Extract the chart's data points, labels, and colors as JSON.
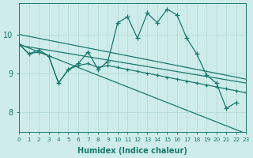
{
  "bg_color": "#ceecea",
  "grid_color": "#b0d8d4",
  "line_color": "#1a7a6e",
  "xlabel": "Humidex (Indice chaleur)",
  "xlim": [
    0,
    23
  ],
  "ylim": [
    7.5,
    10.8
  ],
  "yticks": [
    8,
    9,
    10
  ],
  "xticks": [
    0,
    1,
    2,
    3,
    4,
    5,
    6,
    7,
    8,
    9,
    10,
    11,
    12,
    13,
    14,
    15,
    16,
    17,
    18,
    19,
    20,
    21,
    22,
    23
  ],
  "series": [
    {
      "x": [
        0,
        1,
        2,
        3,
        4,
        5,
        6,
        7,
        8,
        9,
        10,
        11,
        12,
        13,
        14,
        15,
        16,
        17,
        18,
        19,
        20,
        21,
        22
      ],
      "y": [
        9.75,
        9.5,
        9.55,
        9.45,
        8.75,
        9.1,
        9.25,
        9.55,
        9.1,
        9.3,
        10.3,
        10.45,
        9.9,
        10.55,
        10.3,
        10.65,
        10.5,
        9.9,
        9.5,
        8.95,
        8.75,
        8.1,
        8.25
      ],
      "marker": "+",
      "ms": 4.5,
      "lw": 0.9,
      "mew": 0.9
    },
    {
      "x": [
        0,
        23
      ],
      "y": [
        10.0,
        8.85
      ],
      "marker": null,
      "ms": 0,
      "lw": 0.9,
      "mew": 0.5
    },
    {
      "x": [
        0,
        23
      ],
      "y": [
        9.72,
        8.75
      ],
      "marker": null,
      "ms": 0,
      "lw": 0.9,
      "mew": 0.5
    },
    {
      "x": [
        0,
        1,
        2,
        3,
        4,
        5,
        6,
        7,
        8,
        9,
        10,
        11,
        12,
        13,
        14,
        15,
        16,
        17,
        18,
        19,
        20,
        21,
        22,
        23
      ],
      "y": [
        9.75,
        9.5,
        9.6,
        9.45,
        8.75,
        9.1,
        9.2,
        9.25,
        9.15,
        9.2,
        9.15,
        9.1,
        9.05,
        9.0,
        8.95,
        8.9,
        8.85,
        8.8,
        8.75,
        8.7,
        8.65,
        8.6,
        8.55,
        8.5
      ],
      "marker": "+",
      "ms": 3.5,
      "lw": 0.9,
      "mew": 0.9
    },
    {
      "x": [
        0,
        23
      ],
      "y": [
        9.75,
        7.45
      ],
      "marker": null,
      "ms": 0,
      "lw": 0.9,
      "mew": 0.5
    }
  ]
}
